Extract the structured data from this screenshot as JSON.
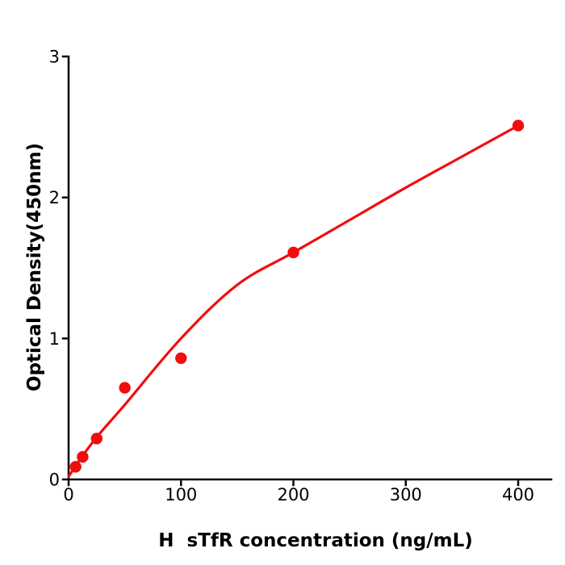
{
  "figure": {
    "background": "#ffffff",
    "axis_color": "#000000",
    "accent_color": "#f20d0d"
  },
  "chart_data": {
    "type": "scatter",
    "title": "",
    "xlabel": "H  sTfR concentration (ng/mL)",
    "ylabel": "Optical Density(450nm)",
    "xlim": [
      0,
      430
    ],
    "ylim": [
      0,
      3
    ],
    "x_ticks": [
      0,
      100,
      200,
      300,
      400
    ],
    "y_ticks": [
      0,
      1,
      2,
      3
    ],
    "grid": false,
    "legend_position": "none",
    "series": [
      {
        "name": "standard-data-points",
        "type": "scatter",
        "color": "#f20d0d",
        "x": [
          6.25,
          12.5,
          25,
          50,
          100,
          200,
          400
        ],
        "y": [
          0.09,
          0.16,
          0.29,
          0.65,
          0.86,
          1.61,
          2.51
        ]
      },
      {
        "name": "fitted-standard-curve",
        "type": "line",
        "color": "#f20d0d",
        "points": [
          [
            0,
            0.02
          ],
          [
            10,
            0.14
          ],
          [
            25,
            0.3
          ],
          [
            50,
            0.53
          ],
          [
            100,
            1.0
          ],
          [
            150,
            1.38
          ],
          [
            200,
            1.61
          ],
          [
            250,
            1.84
          ],
          [
            300,
            2.07
          ],
          [
            350,
            2.29
          ],
          [
            400,
            2.51
          ]
        ]
      }
    ]
  }
}
